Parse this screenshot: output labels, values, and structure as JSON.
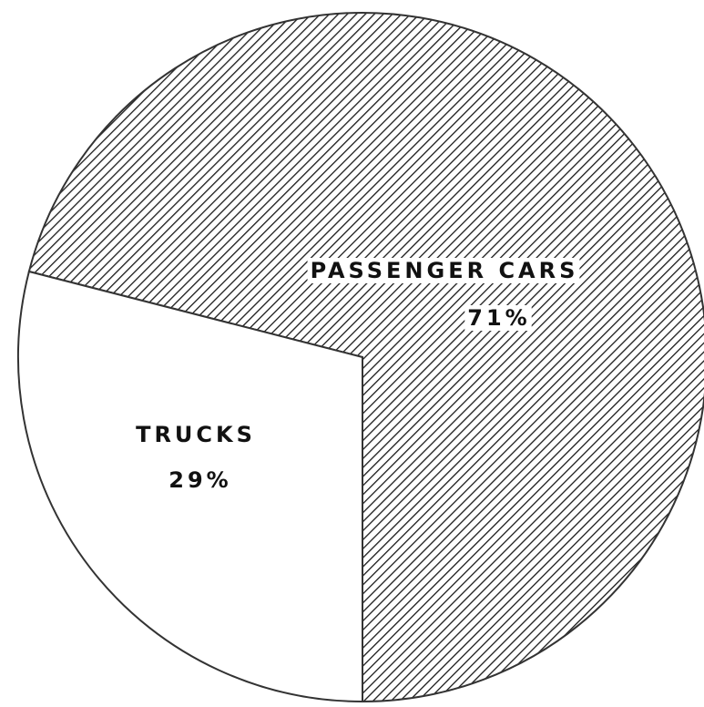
{
  "chart_data": {
    "type": "pie",
    "categories": [
      "PASSENGER CARS",
      "TRUCKS"
    ],
    "values": [
      71,
      29
    ],
    "value_labels": [
      "71%",
      "29%"
    ],
    "colors": [
      "#1a1a1a",
      "#ffffff"
    ],
    "hatch": [
      true,
      false
    ]
  }
}
